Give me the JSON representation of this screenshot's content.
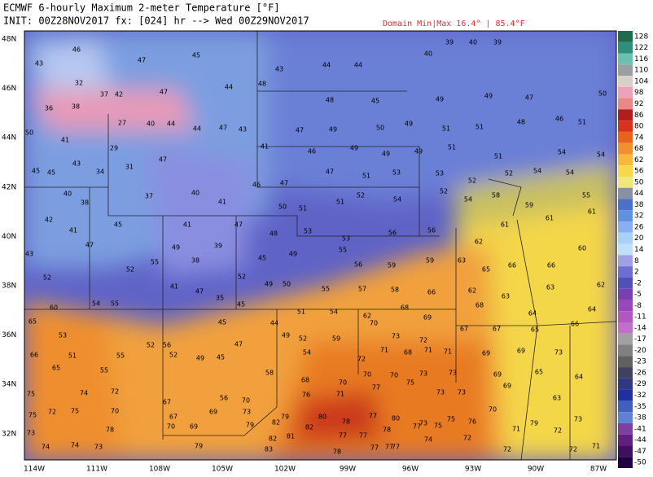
{
  "header": {
    "title": "ECMWF 6-hourly Maximum 2-meter Temperature [°F]",
    "init": "INIT: 00Z28NOV2017 fx: [024] hr --> Wed 00Z29NOV2017",
    "domain": "Domain Min|Max 16.4° | 85.4°F"
  },
  "lat_labels": [
    "48N",
    "46N",
    "44N",
    "42N",
    "40N",
    "38N",
    "36N",
    "34N",
    "32N"
  ],
  "lon_labels": [
    "114W",
    "111W",
    "108W",
    "105W",
    "102W",
    "99W",
    "96W",
    "93W",
    "90W",
    "87W"
  ],
  "colorbar": [
    128,
    122,
    116,
    110,
    104,
    98,
    92,
    86,
    80,
    74,
    68,
    62,
    56,
    50,
    44,
    38,
    32,
    26,
    20,
    14,
    8,
    2,
    -2,
    -5,
    -8,
    -11,
    -14,
    -17,
    -20,
    -23,
    -26,
    -29,
    -32,
    -35,
    -38,
    -41,
    -44,
    -47,
    -50
  ],
  "stations": [
    43,
    46,
    47,
    45,
    43,
    44,
    44,
    40,
    39,
    40,
    39,
    32,
    37,
    42,
    47,
    44,
    48,
    48,
    45,
    49,
    49,
    47,
    50,
    36,
    38,
    27,
    40,
    44,
    44,
    47,
    43,
    47,
    49,
    50,
    49,
    51,
    51,
    48,
    46,
    51,
    50,
    41,
    29,
    31,
    47,
    41,
    46,
    49,
    49,
    49,
    51,
    51,
    54,
    54,
    45,
    45,
    43,
    34,
    40,
    46,
    47,
    47,
    51,
    53,
    53,
    52,
    52,
    54,
    54,
    40,
    38,
    37,
    41,
    50,
    51,
    51,
    52,
    54,
    52,
    54,
    58,
    59,
    55,
    42,
    41,
    45,
    41,
    47,
    48,
    53,
    53,
    56,
    56,
    62,
    61,
    61,
    61,
    43,
    47,
    49,
    38,
    39,
    45,
    49,
    55,
    56,
    59,
    59,
    63,
    65,
    66,
    66,
    60,
    52,
    52,
    55,
    52,
    49,
    50,
    55,
    57,
    58,
    66,
    62,
    63,
    63,
    62,
    60,
    54,
    55,
    41,
    47,
    35,
    45,
    51,
    54,
    62,
    68,
    69,
    68,
    64,
    64,
    65,
    53,
    52,
    56,
    45,
    47,
    44,
    49,
    52,
    59,
    70,
    73,
    72,
    67,
    67,
    65,
    66,
    66,
    51,
    55,
    52,
    49,
    45,
    54,
    72,
    71,
    68,
    71,
    71,
    69,
    69,
    73,
    65,
    55,
    58,
    68,
    70,
    70,
    70,
    73,
    73,
    69,
    65,
    64,
    75,
    74,
    72,
    67,
    56,
    70,
    76,
    71,
    77,
    75,
    73,
    73,
    69,
    63,
    75,
    72,
    75,
    70,
    67,
    69,
    73,
    79,
    80,
    78,
    77,
    80,
    73,
    75,
    70,
    79,
    73,
    73,
    78,
    70,
    69,
    79,
    82,
    82,
    77,
    78,
    77,
    75,
    76,
    71,
    72,
    74,
    74,
    73,
    79,
    82,
    81,
    78,
    77,
    77,
    74,
    72,
    72,
    72,
    71,
    83,
    77,
    77
  ]
}
